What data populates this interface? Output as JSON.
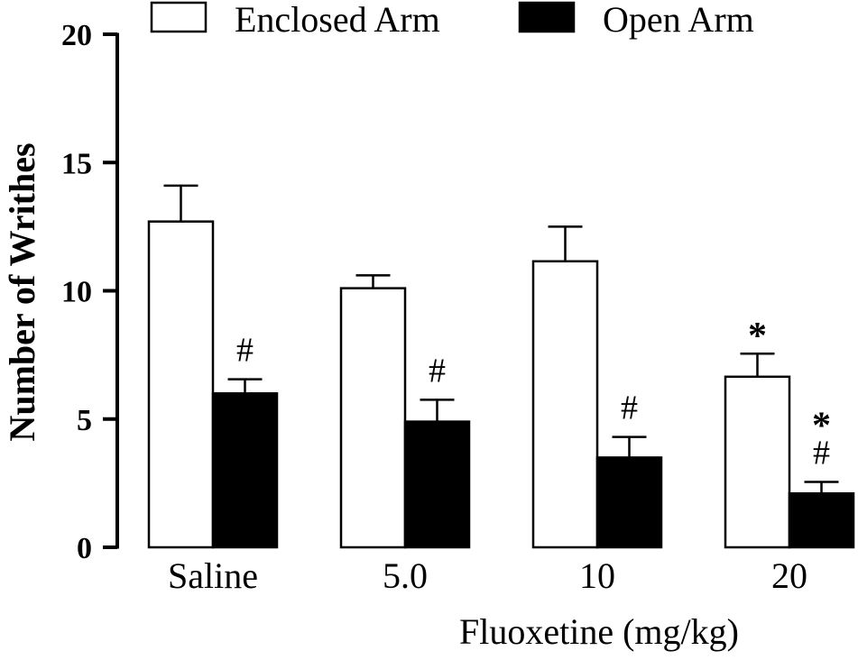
{
  "chart_data": {
    "type": "bar",
    "ylabel": "Number of Writhes",
    "xlabel": "Fluoxetine (mg/kg)",
    "categories": [
      "Saline",
      "5.0",
      "10",
      "20"
    ],
    "ylim": [
      0,
      20
    ],
    "yticks": [
      "0",
      "5",
      "10",
      "15",
      "20"
    ],
    "legend_position": "top",
    "series": [
      {
        "name": "Enclosed Arm",
        "fill": "#ffffff",
        "stroke": "#000000",
        "values": [
          12.7,
          10.1,
          11.15,
          6.65
        ],
        "errors": [
          1.4,
          0.5,
          1.35,
          0.9
        ],
        "annotations": [
          "",
          "",
          "",
          "*"
        ]
      },
      {
        "name": "Open Arm",
        "fill": "#000000",
        "stroke": "#000000",
        "values": [
          6.0,
          4.9,
          3.5,
          2.1
        ],
        "errors": [
          0.55,
          0.85,
          0.8,
          0.45
        ],
        "annotations": [
          "#",
          "#",
          "#",
          "*\n#"
        ]
      }
    ]
  }
}
